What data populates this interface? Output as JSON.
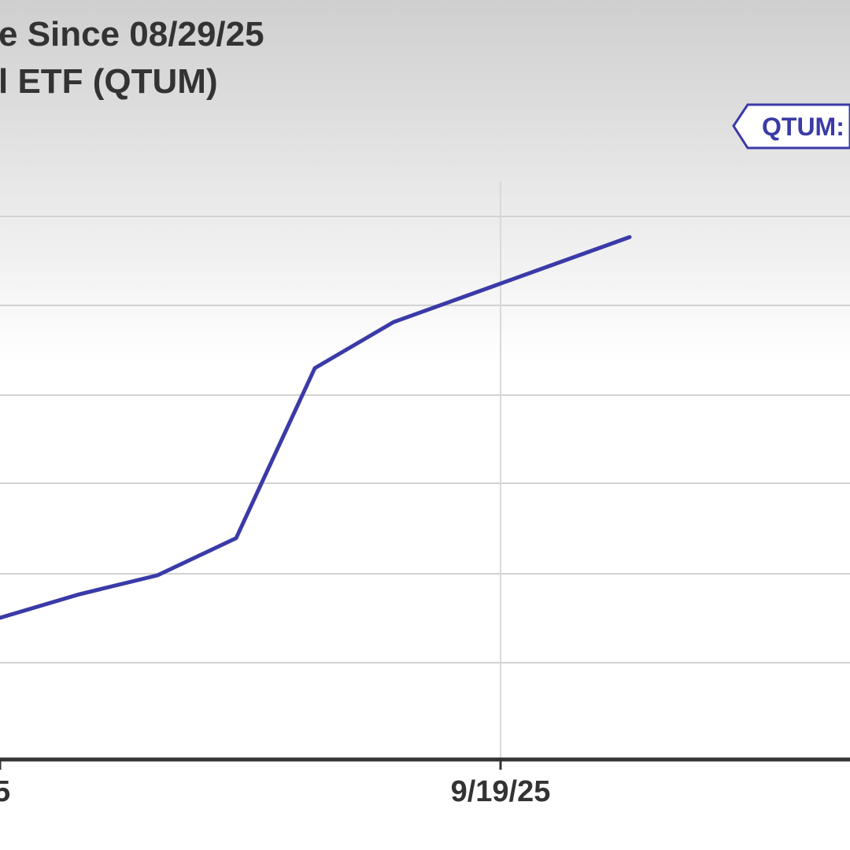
{
  "chart_data": {
    "type": "line",
    "title_line1": "e Since 08/29/25",
    "title_line2": "l ETF (QTUM)",
    "x_tick_labels": [
      "5",
      "9/19/25"
    ],
    "series": [
      {
        "tag": "QTUM:",
        "color": "#3a3aa8",
        "points": [
          {
            "x": 0,
            "y": 4.0
          },
          {
            "x": 1,
            "y": 4.66
          },
          {
            "x": 2,
            "y": 5.2
          },
          {
            "x": 3,
            "y": 6.25
          },
          {
            "x": 4,
            "y": 11.05
          },
          {
            "x": 5,
            "y": 12.35
          },
          {
            "x": 6,
            "y": 13.15
          },
          {
            "x": 7,
            "y": 13.95
          },
          {
            "x": 8,
            "y": 14.75
          }
        ]
      }
    ],
    "grid": true,
    "background_gradient": [
      "#cfcfcf",
      "#ffffff"
    ],
    "axis_color": "#333333"
  }
}
